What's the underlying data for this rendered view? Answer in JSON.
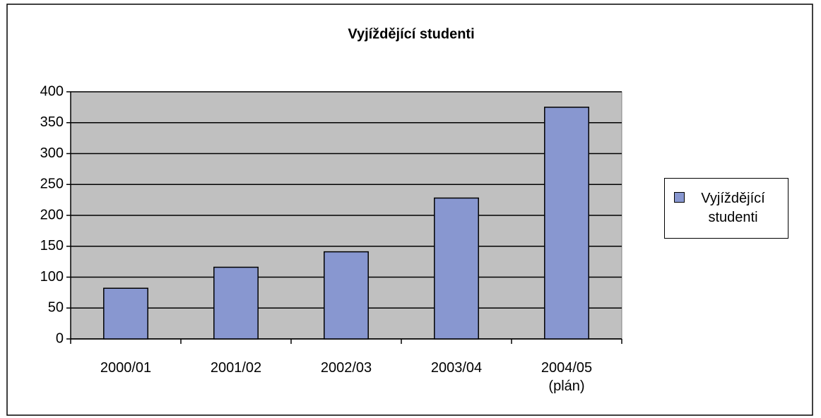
{
  "chart_data": {
    "type": "bar",
    "title": "Vyjíždějící studenti",
    "categories": [
      "2000/01",
      "2001/02",
      "2002/03",
      "2003/04",
      "2004/05 (plán)"
    ],
    "series": [
      {
        "name": "Vyjíždějící studenti",
        "color": "#8897d0",
        "values": [
          82,
          116,
          141,
          228,
          375
        ]
      }
    ],
    "ylim": [
      0,
      400
    ],
    "yticks": [
      0,
      50,
      100,
      150,
      200,
      250,
      300,
      350,
      400
    ],
    "grid": true,
    "legend": "right"
  }
}
